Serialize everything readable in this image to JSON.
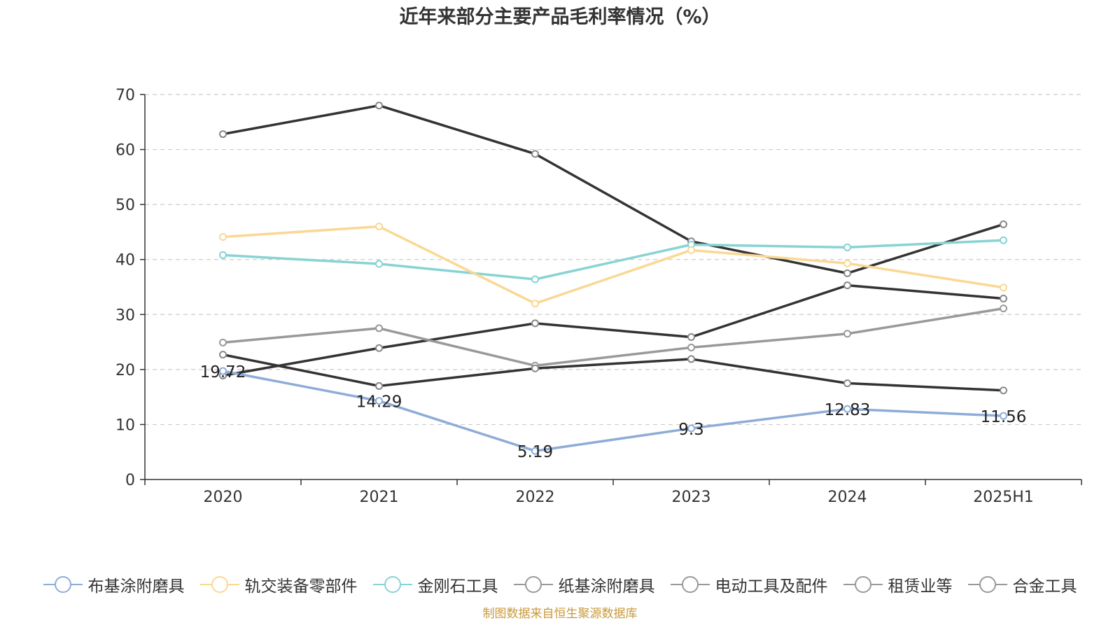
{
  "chart_data": {
    "type": "line",
    "title": "近年来部分主要产品毛利率情况（%）",
    "categories": [
      "2020",
      "2021",
      "2022",
      "2023",
      "2024",
      "2025H1"
    ],
    "ylim": [
      0,
      70
    ],
    "yticks": [
      0,
      10,
      20,
      30,
      40,
      50,
      60,
      70
    ],
    "grid": true,
    "legend_position": "bottom",
    "series": [
      {
        "name": "布基涂附磨具",
        "color": "#8eacd8",
        "values": [
          19.72,
          14.29,
          5.19,
          9.3,
          12.83,
          11.56
        ],
        "labels": [
          "19.72",
          "14.29",
          "5.19",
          "9.3",
          "12.83",
          "11.56"
        ]
      },
      {
        "name": "轨交装备零部件",
        "color": "#fad894",
        "values": [
          44.1,
          46.0,
          32.0,
          41.7,
          39.3,
          34.9
        ]
      },
      {
        "name": "金刚石工具",
        "color": "#88d3d3",
        "values": [
          40.8,
          39.2,
          36.4,
          42.7,
          42.2,
          43.5
        ]
      },
      {
        "name": "纸基涂附磨具",
        "color": "#333333",
        "values": [
          62.8,
          68.0,
          59.2,
          43.3,
          37.5,
          46.4
        ]
      },
      {
        "name": "电动工具及配件",
        "color": "#333333",
        "values": [
          22.7,
          17.0,
          20.2,
          21.9,
          17.5,
          16.2
        ]
      },
      {
        "name": "租赁业等",
        "color": "#999999",
        "values": [
          24.9,
          27.5,
          20.7,
          24.0,
          26.5,
          31.1
        ]
      },
      {
        "name": "合金工具",
        "color": "#333333",
        "values": [
          18.9,
          23.9,
          28.4,
          25.9,
          35.3,
          32.9
        ]
      }
    ]
  },
  "legend": {
    "items": [
      {
        "name": "布基涂附磨具",
        "color": "#8eacd8"
      },
      {
        "name": "轨交装备零部件",
        "color": "#fad894"
      },
      {
        "name": "金刚石工具",
        "color": "#88d3d3"
      },
      {
        "name": "纸基涂附磨具",
        "color": "#999999"
      },
      {
        "name": "电动工具及配件",
        "color": "#999999"
      },
      {
        "name": "租赁业等",
        "color": "#999999"
      },
      {
        "name": "合金工具",
        "color": "#999999"
      }
    ]
  },
  "source": "制图数据来自恒生聚源数据库"
}
